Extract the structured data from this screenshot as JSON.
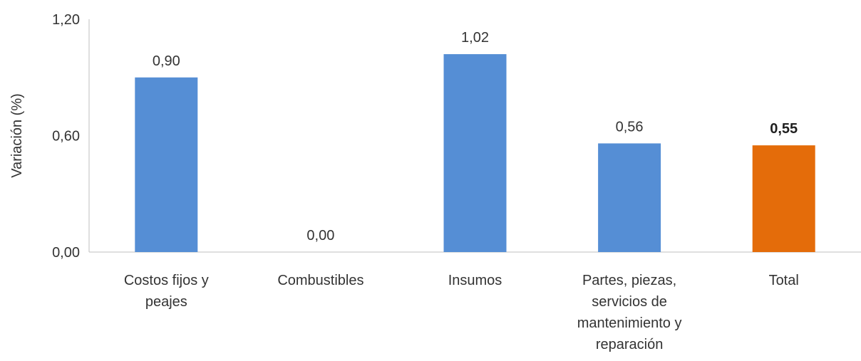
{
  "chart_data": {
    "type": "bar",
    "title": "",
    "xlabel": "",
    "ylabel": "Variación (%)",
    "ylim": [
      0,
      1.2
    ],
    "yticks": [
      "0,00",
      "0,60",
      "1,20"
    ],
    "ytick_values": [
      0,
      0.6,
      1.2
    ],
    "grid": false,
    "categories": [
      [
        "Costos fijos y",
        "peajes"
      ],
      [
        "Combustibles"
      ],
      [
        "Insumos"
      ],
      [
        "Partes, piezas,",
        "servicios de",
        "mantenimiento y",
        "reparación"
      ],
      [
        "Total"
      ]
    ],
    "values": [
      0.9,
      0.0,
      1.02,
      0.56,
      0.55
    ],
    "data_labels": [
      "0,90",
      "0,00",
      "1,02",
      "0,56",
      "0,55"
    ],
    "bold_labels": [
      false,
      false,
      false,
      false,
      true
    ],
    "colors": [
      "#558ED5",
      "#558ED5",
      "#558ED5",
      "#558ED5",
      "#E46C0A"
    ]
  }
}
